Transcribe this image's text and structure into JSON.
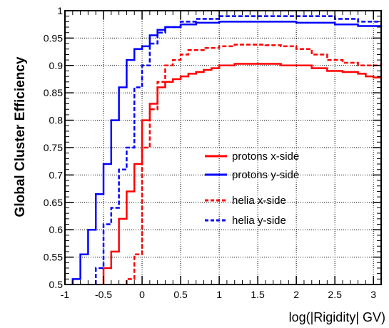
{
  "chart_data": {
    "type": "line",
    "title": "",
    "xlabel": "log(|Rigidity| GV)",
    "ylabel": "Global Cluster Efficiency",
    "xlim": [
      -1,
      3.1
    ],
    "ylim": [
      0.5,
      1.0
    ],
    "x_ticks": [
      "-1",
      "-0.5",
      "0",
      "0.5",
      "1",
      "1.5",
      "2",
      "2.5",
      "3"
    ],
    "y_ticks": [
      "0.5",
      "0.55",
      "0.6",
      "0.65",
      "0.7",
      "0.75",
      "0.8",
      "0.85",
      "0.9",
      "0.95",
      "1"
    ],
    "grid": true,
    "legend_position": "center-right",
    "series": [
      {
        "name": "protons x-side",
        "color": "#ff0000",
        "dash": "solid",
        "x": [
          -0.5,
          -0.4,
          -0.3,
          -0.2,
          -0.1,
          0.0,
          0.1,
          0.2,
          0.3,
          0.4,
          0.5,
          0.6,
          0.7,
          0.8,
          0.9,
          1.0,
          1.2,
          1.4,
          1.6,
          1.8,
          2.0,
          2.2,
          2.4,
          2.6,
          2.8,
          2.9,
          3.0,
          3.1
        ],
        "values": [
          0.53,
          0.56,
          0.62,
          0.67,
          0.72,
          0.8,
          0.83,
          0.86,
          0.87,
          0.875,
          0.88,
          0.885,
          0.888,
          0.892,
          0.895,
          0.9,
          0.903,
          0.903,
          0.903,
          0.9,
          0.9,
          0.895,
          0.89,
          0.888,
          0.885,
          0.88,
          0.878,
          0.88
        ]
      },
      {
        "name": "protons y-side",
        "color": "#0000ff",
        "dash": "solid",
        "x": [
          -0.9,
          -0.8,
          -0.7,
          -0.6,
          -0.5,
          -0.4,
          -0.3,
          -0.2,
          -0.1,
          0.0,
          0.1,
          0.2,
          0.3,
          0.5,
          0.7,
          1.0,
          1.5,
          2.0,
          2.5,
          2.8,
          3.1
        ],
        "values": [
          0.51,
          0.555,
          0.6,
          0.665,
          0.72,
          0.8,
          0.86,
          0.91,
          0.93,
          0.935,
          0.955,
          0.965,
          0.97,
          0.975,
          0.978,
          0.98,
          0.98,
          0.978,
          0.975,
          0.972,
          0.97
        ]
      },
      {
        "name": "helia x-side",
        "color": "#ff0000",
        "dash": "dashed",
        "x": [
          -0.2,
          -0.1,
          0.0,
          0.1,
          0.2,
          0.3,
          0.4,
          0.5,
          0.6,
          0.8,
          1.0,
          1.2,
          1.4,
          1.6,
          1.8,
          2.0,
          2.2,
          2.4,
          2.6,
          2.8,
          3.0,
          3.1
        ],
        "values": [
          0.51,
          0.555,
          0.75,
          0.82,
          0.87,
          0.9,
          0.91,
          0.92,
          0.928,
          0.932,
          0.935,
          0.938,
          0.938,
          0.937,
          0.935,
          0.93,
          0.92,
          0.91,
          0.905,
          0.9,
          0.9,
          0.905
        ]
      },
      {
        "name": "helia y-side",
        "color": "#0000ff",
        "dash": "dashed",
        "x": [
          -0.6,
          -0.5,
          -0.4,
          -0.3,
          -0.2,
          -0.1,
          0.0,
          0.1,
          0.2,
          0.3,
          0.5,
          0.7,
          1.0,
          1.5,
          2.0,
          2.5,
          2.8,
          3.1
        ],
        "values": [
          0.53,
          0.61,
          0.64,
          0.71,
          0.75,
          0.86,
          0.9,
          0.94,
          0.96,
          0.97,
          0.98,
          0.985,
          0.99,
          0.99,
          0.99,
          0.985,
          0.98,
          0.98
        ]
      }
    ]
  }
}
